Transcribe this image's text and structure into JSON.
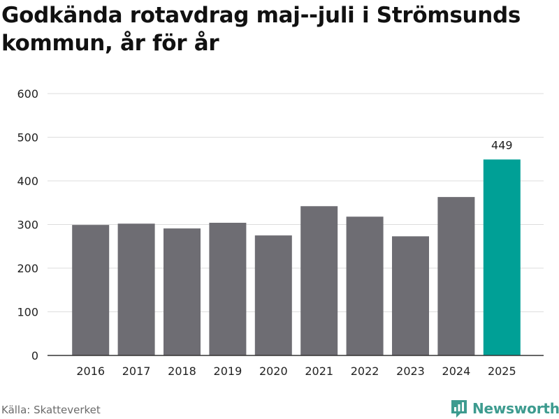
{
  "title": "Godkända rotavdrag maj--juli i Strömsunds kommun, år för år",
  "source": "Källa: Skatteverket",
  "brand": {
    "name": "Newsworthy",
    "icon": "newsworthy-logo-icon",
    "color": "#3d9b8f"
  },
  "colors": {
    "bar": "#6e6d73",
    "highlight": "#00a096",
    "grid": "#dddddd",
    "axis": "#333333"
  },
  "chart_data": {
    "type": "bar",
    "categories": [
      "2016",
      "2017",
      "2018",
      "2019",
      "2020",
      "2021",
      "2022",
      "2023",
      "2024",
      "2025"
    ],
    "values": [
      299,
      302,
      291,
      304,
      275,
      342,
      318,
      273,
      363,
      449
    ],
    "highlight_index": 9,
    "data_labels": [
      {
        "category": "2025",
        "text": "449"
      }
    ],
    "ylim": [
      0,
      600
    ],
    "yticks": [
      0,
      100,
      200,
      300,
      400,
      500,
      600
    ],
    "grid": true,
    "legend": "none",
    "xlabel": "",
    "ylabel": ""
  }
}
